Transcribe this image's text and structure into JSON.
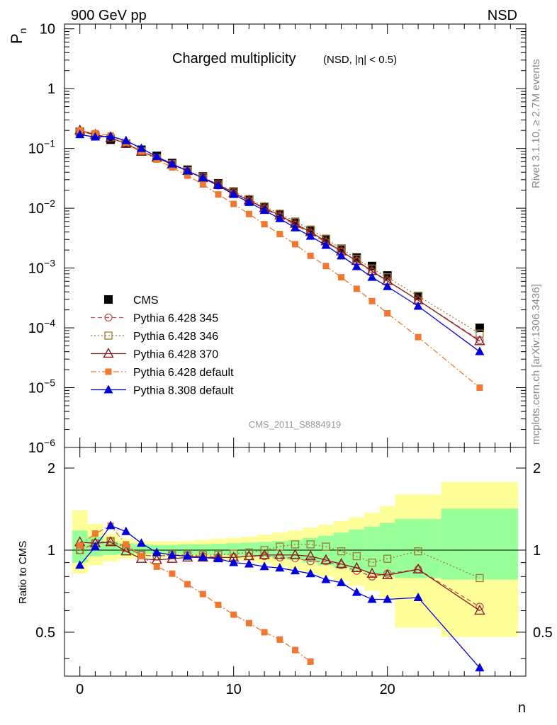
{
  "header": {
    "left_text": "900 GeV pp",
    "right_text": "NSD"
  },
  "side_labels": {
    "rivet": "Rivet 3.1.10, ≥ 2.7M events",
    "mcplots": "mcplots.cern.ch [arXiv:1306.3436]"
  },
  "chart_data": [
    {
      "type": "line",
      "title": "Charged multiplicity",
      "subtitle": "(NSD, |η| < 0.5)",
      "ylabel": "P",
      "ylabel_sub": "n",
      "yscale": "log",
      "ylim": [
        1e-06,
        12
      ],
      "xlim": [
        -1,
        29
      ],
      "y_ticks": [
        {
          "value": 10,
          "label": "10"
        },
        {
          "value": 1,
          "label": "1"
        },
        {
          "value": 0.1,
          "label": "10",
          "exp": "−1"
        },
        {
          "value": 0.01,
          "label": "10",
          "exp": "−2"
        },
        {
          "value": 0.001,
          "label": "10",
          "exp": "−3"
        },
        {
          "value": 0.0001,
          "label": "10",
          "exp": "−4"
        },
        {
          "value": 1e-05,
          "label": "10",
          "exp": "−5"
        },
        {
          "value": 1e-06,
          "label": "10",
          "exp": "−6"
        }
      ],
      "watermark": "CMS_2011_S8884919",
      "legend_position": "lower-left",
      "series": [
        {
          "name": "CMS",
          "color": "#000000",
          "marker": "square-filled",
          "line": "none",
          "x": [
            0,
            1,
            2,
            3,
            4,
            5,
            6,
            7,
            8,
            9,
            10,
            11,
            12,
            13,
            14,
            15,
            16,
            17,
            18,
            19,
            20,
            22,
            26
          ],
          "y": [
            0.19,
            0.16,
            0.14,
            0.12,
            0.095,
            0.075,
            0.057,
            0.044,
            0.034,
            0.026,
            0.019,
            0.014,
            0.0105,
            0.0078,
            0.0057,
            0.0042,
            0.003,
            0.0021,
            0.0015,
            0.00108,
            0.00075,
            0.00034,
            0.0001
          ]
        },
        {
          "name": "Pythia 6.428 345",
          "color": "#c0505a",
          "marker": "circle-open",
          "line": "dashed",
          "x": [
            0,
            1,
            2,
            3,
            4,
            5,
            6,
            7,
            8,
            9,
            10,
            11,
            12,
            13,
            14,
            15,
            16,
            17,
            18,
            19,
            20,
            22,
            26
          ],
          "y": [
            0.19,
            0.17,
            0.15,
            0.12,
            0.09,
            0.069,
            0.055,
            0.042,
            0.032,
            0.024,
            0.018,
            0.0133,
            0.0099,
            0.0073,
            0.0053,
            0.0038,
            0.0027,
            0.0019,
            0.00131,
            0.00086,
            0.00061,
            0.00029,
            6.2e-05
          ]
        },
        {
          "name": "Pythia 6.428 346",
          "color": "#a07830",
          "marker": "square-open",
          "line": "dotted",
          "x": [
            0,
            1,
            2,
            3,
            4,
            5,
            6,
            7,
            8,
            9,
            10,
            11,
            12,
            13,
            14,
            15,
            16,
            17,
            18,
            19,
            20,
            22,
            26
          ],
          "y": [
            0.19,
            0.17,
            0.15,
            0.12,
            0.09,
            0.069,
            0.055,
            0.042,
            0.033,
            0.025,
            0.019,
            0.0142,
            0.0107,
            0.0081,
            0.006,
            0.0044,
            0.0031,
            0.0021,
            0.00143,
            0.00098,
            0.0007,
            0.00034,
            8e-05
          ]
        },
        {
          "name": "Pythia 6.428 370",
          "color": "#8b1a1a",
          "marker": "triangle-open",
          "line": "solid",
          "x": [
            0,
            1,
            2,
            3,
            4,
            5,
            6,
            7,
            8,
            9,
            10,
            11,
            12,
            13,
            14,
            15,
            16,
            17,
            18,
            19,
            20,
            22,
            26
          ],
          "y": [
            0.2,
            0.17,
            0.15,
            0.12,
            0.088,
            0.07,
            0.054,
            0.042,
            0.032,
            0.025,
            0.018,
            0.0135,
            0.0101,
            0.0076,
            0.0055,
            0.004,
            0.0028,
            0.0019,
            0.00132,
            0.00089,
            0.00061,
            0.00029,
            6e-05
          ]
        },
        {
          "name": "Pythia 6.428 default",
          "color": "#f07830",
          "marker": "square-filled-small",
          "line": "dashdot",
          "x": [
            0,
            1,
            2,
            3,
            4,
            5,
            6,
            7,
            8,
            9,
            10,
            11,
            12,
            13,
            14,
            15,
            16,
            17,
            18,
            19,
            20,
            22,
            26
          ],
          "y": [
            0.2,
            0.18,
            0.165,
            0.125,
            0.09,
            0.065,
            0.048,
            0.035,
            0.025,
            0.017,
            0.0118,
            0.008,
            0.0054,
            0.0037,
            0.0025,
            0.0016,
            0.00108,
            0.0007,
            0.00045,
            0.00028,
            0.000175,
            7e-05,
            1e-05
          ]
        },
        {
          "name": "Pythia 8.308 default",
          "color": "#0000dd",
          "marker": "triangle-filled",
          "line": "solid",
          "x": [
            0,
            1,
            2,
            3,
            4,
            5,
            6,
            7,
            8,
            9,
            10,
            11,
            12,
            13,
            14,
            15,
            16,
            17,
            18,
            19,
            20,
            22,
            26
          ],
          "y": [
            0.17,
            0.155,
            0.16,
            0.135,
            0.1,
            0.073,
            0.055,
            0.042,
            0.032,
            0.024,
            0.017,
            0.0125,
            0.0092,
            0.0067,
            0.0047,
            0.0034,
            0.0024,
            0.0016,
            0.00106,
            0.0007,
            0.00049,
            0.00023,
            4e-05
          ]
        }
      ]
    },
    {
      "type": "line",
      "ylabel": "Ratio to CMS",
      "xlabel": "n",
      "yscale": "log",
      "ylim": [
        0.345,
        2.38
      ],
      "xlim": [
        -1,
        29
      ],
      "y_ticks": [
        {
          "value": 2,
          "label": "2"
        },
        {
          "value": 1,
          "label": "1"
        },
        {
          "value": 0.5,
          "label": "0.5"
        }
      ],
      "x_ticks": [
        {
          "value": 0,
          "label": "0"
        },
        {
          "value": 10,
          "label": "10"
        },
        {
          "value": 20,
          "label": "20"
        }
      ],
      "band_edges": [
        -0.5,
        0.5,
        1.5,
        2.5,
        3.5,
        4.5,
        5.5,
        6.5,
        7.5,
        8.5,
        9.5,
        10.5,
        11.5,
        12.5,
        13.5,
        14.5,
        15.5,
        16.5,
        17.5,
        18.5,
        19.5,
        20.5,
        23.5,
        28.5
      ],
      "band_stat": {
        "low": [
          0.9,
          0.95,
          0.96,
          0.965,
          0.97,
          0.97,
          0.97,
          0.965,
          0.965,
          0.96,
          0.955,
          0.95,
          0.94,
          0.93,
          0.92,
          0.9,
          0.88,
          0.86,
          0.84,
          0.82,
          0.8,
          0.79,
          0.78
        ],
        "high": [
          1.18,
          1.12,
          1.08,
          1.06,
          1.05,
          1.045,
          1.045,
          1.05,
          1.05,
          1.055,
          1.06,
          1.065,
          1.07,
          1.08,
          1.09,
          1.11,
          1.13,
          1.16,
          1.19,
          1.22,
          1.26,
          1.3,
          1.42
        ]
      },
      "band_total": {
        "low": [
          0.82,
          0.88,
          0.91,
          0.93,
          0.94,
          0.945,
          0.94,
          0.94,
          0.935,
          0.93,
          0.92,
          0.91,
          0.895,
          0.87,
          0.85,
          0.82,
          0.8,
          0.77,
          0.74,
          0.71,
          0.67,
          0.52,
          0.48
        ],
        "high": [
          1.4,
          1.25,
          1.15,
          1.1,
          1.08,
          1.075,
          1.075,
          1.08,
          1.09,
          1.1,
          1.11,
          1.12,
          1.14,
          1.16,
          1.18,
          1.21,
          1.24,
          1.28,
          1.32,
          1.37,
          1.45,
          1.6,
          1.78
        ]
      },
      "series": [
        {
          "name": "Pythia 6.428 345",
          "color": "#c0505a",
          "marker": "circle-open",
          "line": "dashed",
          "x": [
            0,
            1,
            2,
            3,
            4,
            5,
            6,
            7,
            8,
            9,
            10,
            11,
            12,
            13,
            14,
            15,
            16,
            17,
            18,
            19,
            20,
            22,
            26
          ],
          "y": [
            1.0,
            1.06,
            1.08,
            1.03,
            0.96,
            0.95,
            0.96,
            0.955,
            0.95,
            0.94,
            0.94,
            0.95,
            0.95,
            0.94,
            0.935,
            0.91,
            0.91,
            0.88,
            0.84,
            0.8,
            0.82,
            0.85,
            0.62
          ]
        },
        {
          "name": "Pythia 6.428 346",
          "color": "#a07830",
          "marker": "square-open",
          "line": "dotted",
          "x": [
            0,
            1,
            2,
            3,
            4,
            5,
            6,
            7,
            8,
            9,
            10,
            11,
            12,
            13,
            14,
            15,
            16,
            17,
            18,
            19,
            20,
            22,
            26
          ],
          "y": [
            1.0,
            1.06,
            1.08,
            1.02,
            0.96,
            0.95,
            0.96,
            0.96,
            0.96,
            0.96,
            0.97,
            0.98,
            1.0,
            1.03,
            1.05,
            1.05,
            1.03,
            0.99,
            0.95,
            0.9,
            0.93,
            0.99,
            0.79
          ]
        },
        {
          "name": "Pythia 6.428 370",
          "color": "#8b1a1a",
          "marker": "triangle-open",
          "line": "solid",
          "x": [
            0,
            1,
            2,
            3,
            4,
            5,
            6,
            7,
            8,
            9,
            10,
            11,
            12,
            13,
            14,
            15,
            16,
            17,
            18,
            19,
            20,
            22,
            26
          ],
          "y": [
            1.07,
            1.06,
            1.07,
            0.99,
            0.93,
            0.92,
            0.93,
            0.94,
            0.94,
            0.94,
            0.94,
            0.95,
            0.96,
            0.96,
            0.96,
            0.95,
            0.92,
            0.89,
            0.86,
            0.82,
            0.81,
            0.85,
            0.6
          ]
        },
        {
          "name": "Pythia 6.428 default",
          "color": "#f07830",
          "marker": "square-filled-small",
          "line": "dashdot",
          "x": [
            0,
            1,
            2,
            3,
            4,
            5,
            6,
            7,
            8,
            9,
            10,
            11,
            12,
            13,
            14,
            15
          ],
          "y": [
            1.04,
            1.15,
            1.23,
            1.05,
            0.95,
            0.87,
            0.82,
            0.75,
            0.69,
            0.63,
            0.58,
            0.54,
            0.5,
            0.47,
            0.43,
            0.39
          ]
        },
        {
          "name": "Pythia 8.308 default",
          "color": "#0000dd",
          "marker": "triangle-filled",
          "line": "solid",
          "x": [
            0,
            1,
            2,
            3,
            4,
            5,
            6,
            7,
            8,
            9,
            10,
            11,
            12,
            13,
            14,
            15,
            16,
            17,
            18,
            19,
            20,
            22,
            26
          ],
          "y": [
            0.88,
            1.03,
            1.23,
            1.17,
            1.06,
            0.98,
            0.96,
            0.95,
            0.94,
            0.93,
            0.9,
            0.89,
            0.87,
            0.86,
            0.84,
            0.82,
            0.78,
            0.76,
            0.7,
            0.66,
            0.66,
            0.67,
            0.37
          ]
        }
      ]
    }
  ]
}
